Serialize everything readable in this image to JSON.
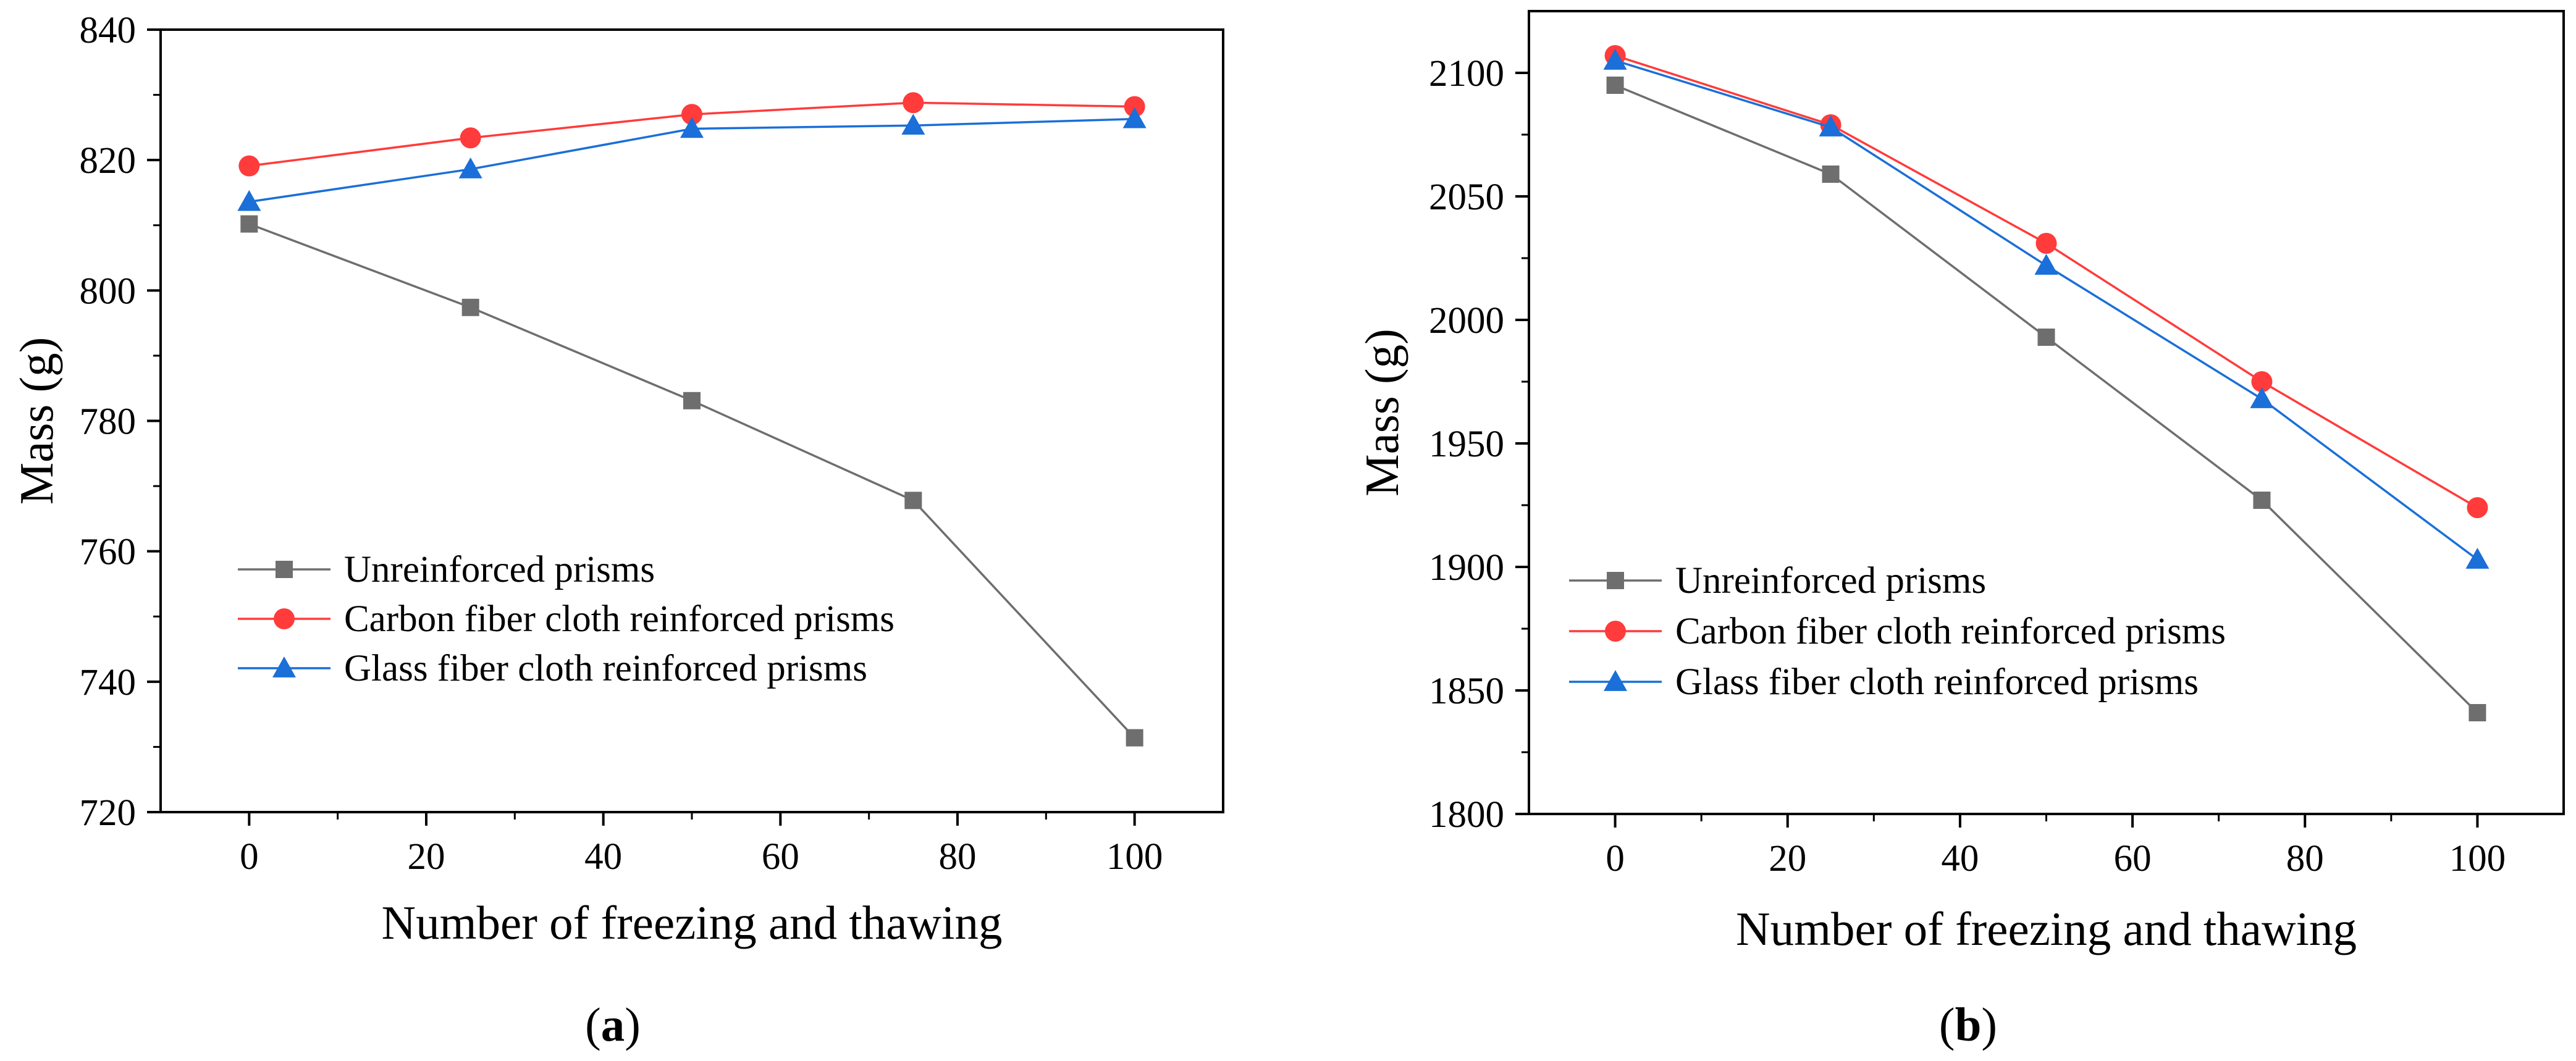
{
  "figure": {
    "captions": [
      {
        "letter": "a",
        "open": "(",
        "close": ")"
      },
      {
        "letter": "b",
        "open": "(",
        "close": ")"
      }
    ]
  },
  "chart_data": [
    {
      "type": "line",
      "panel": "a",
      "title": "",
      "xlabel": "Number of freezing and thawing",
      "ylabel": "Mass (g)",
      "xlim": [
        -10,
        110
      ],
      "ylim": [
        720,
        840
      ],
      "xticks": [
        0,
        20,
        40,
        60,
        80,
        100
      ],
      "yticks": [
        720,
        740,
        760,
        780,
        800,
        820,
        840
      ],
      "x": [
        0,
        25,
        50,
        75,
        100
      ],
      "legend_position": "middle-left",
      "series": [
        {
          "name": "Unreinforced prisms",
          "color": "#6e6e6e",
          "marker": "square",
          "values": [
            810.2,
            797.4,
            783.1,
            767.8,
            731.4
          ]
        },
        {
          "name": "Carbon fiber cloth reinforced prisms",
          "color": "#ff3b3b",
          "marker": "circle",
          "values": [
            819.1,
            823.4,
            827.0,
            828.8,
            828.2
          ]
        },
        {
          "name": "Glass fiber cloth reinforced prisms",
          "color": "#1a6fd8",
          "marker": "triangle",
          "values": [
            813.6,
            818.6,
            824.8,
            825.3,
            826.3
          ]
        }
      ]
    },
    {
      "type": "line",
      "panel": "b",
      "title": "",
      "xlabel": "Number of freezing and thawing",
      "ylabel": "Mass (g)",
      "xlim": [
        -10,
        110
      ],
      "ylim": [
        1800,
        2125
      ],
      "xticks": [
        0,
        20,
        40,
        60,
        80,
        100
      ],
      "yticks": [
        1800,
        1850,
        1900,
        1950,
        2000,
        2050,
        2100
      ],
      "x": [
        0,
        25,
        50,
        75,
        100
      ],
      "legend_position": "middle-left",
      "series": [
        {
          "name": "Unreinforced prisms",
          "color": "#6e6e6e",
          "marker": "square",
          "values": [
            2095,
            2059,
            1993,
            1927,
            1841
          ]
        },
        {
          "name": "Carbon fiber cloth reinforced prisms",
          "color": "#ff3b3b",
          "marker": "circle",
          "values": [
            2107,
            2079,
            2031,
            1975,
            1924
          ]
        },
        {
          "name": "Glass fiber cloth reinforced prisms",
          "color": "#1a6fd8",
          "marker": "triangle",
          "values": [
            2105,
            2078,
            2022,
            1968,
            1903
          ]
        }
      ]
    }
  ]
}
